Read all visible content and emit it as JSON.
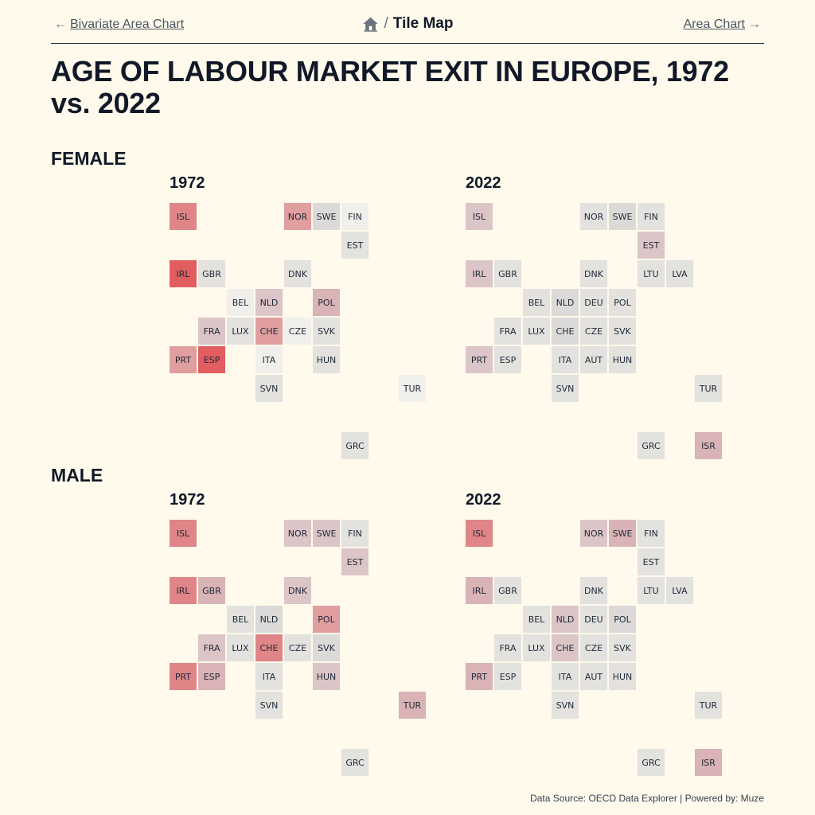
{
  "nav": {
    "prev_label": "Bivariate Area Chart",
    "prev_arrow": "←",
    "next_label": "Area Chart",
    "next_arrow": "→",
    "separator": "/",
    "current": "Tile Map"
  },
  "title": "AGE OF LABOUR MARKET EXIT IN EUROPE, 1972 vs. 2022",
  "footer": "Data Source: OECD Data Explorer | Powered by: Muze",
  "colors": {
    "background": "#fffaeb",
    "tile_levels": [
      "#f0efeb",
      "#e3e2df",
      "#dcdad8",
      "#dcc5c7",
      "#d9b3b6",
      "#e09e9f",
      "#e08587",
      "#e25d60"
    ]
  },
  "chart_data": {
    "type": "tile-map",
    "color_scale": "intensity level 0 (grey) to 7 (red)",
    "positions": {
      "ISL": [
        0,
        0
      ],
      "NOR": [
        4,
        0
      ],
      "SWE": [
        5,
        0
      ],
      "FIN": [
        6,
        0
      ],
      "EST": [
        6,
        1
      ],
      "IRL": [
        0,
        2
      ],
      "GBR": [
        1,
        2
      ],
      "DNK": [
        4,
        2
      ],
      "LTU": [
        6,
        2
      ],
      "LVA": [
        7,
        2
      ],
      "BEL": [
        2,
        3
      ],
      "NLD": [
        3,
        3
      ],
      "DEU": [
        4,
        3
      ],
      "POL": [
        5,
        3
      ],
      "FRA": [
        1,
        4
      ],
      "LUX": [
        2,
        4
      ],
      "CHE": [
        3,
        4
      ],
      "CZE": [
        4,
        4
      ],
      "SVK": [
        5,
        4
      ],
      "PRT": [
        0,
        5
      ],
      "ESP": [
        1,
        5
      ],
      "ITA": [
        3,
        5
      ],
      "AUT": [
        4,
        5
      ],
      "HUN": [
        5,
        5
      ],
      "SVN": [
        3,
        6
      ],
      "TUR": [
        8,
        6
      ],
      "GRC": [
        6,
        8
      ],
      "ISR": [
        8,
        8
      ]
    },
    "sections": [
      {
        "name": "FEMALE",
        "panels": [
          {
            "year": "1972",
            "tiles": [
              {
                "code": "ISL",
                "level": 6
              },
              {
                "code": "NOR",
                "level": 5
              },
              {
                "code": "SWE",
                "level": 2
              },
              {
                "code": "FIN",
                "level": 0
              },
              {
                "code": "EST",
                "level": 1
              },
              {
                "code": "IRL",
                "level": 7
              },
              {
                "code": "GBR",
                "level": 1
              },
              {
                "code": "DNK",
                "level": 1
              },
              {
                "code": "BEL",
                "level": 0
              },
              {
                "code": "NLD",
                "level": 3
              },
              {
                "code": "POL",
                "level": 4
              },
              {
                "code": "FRA",
                "level": 3
              },
              {
                "code": "LUX",
                "level": 1
              },
              {
                "code": "CHE",
                "level": 5
              },
              {
                "code": "CZE",
                "level": 0
              },
              {
                "code": "SVK",
                "level": 1
              },
              {
                "code": "PRT",
                "level": 5
              },
              {
                "code": "ESP",
                "level": 7
              },
              {
                "code": "ITA",
                "level": 0
              },
              {
                "code": "HUN",
                "level": 1
              },
              {
                "code": "SVN",
                "level": 1
              },
              {
                "code": "TUR",
                "level": 0
              },
              {
                "code": "GRC",
                "level": 1
              }
            ]
          },
          {
            "year": "2022",
            "tiles": [
              {
                "code": "ISL",
                "level": 3
              },
              {
                "code": "NOR",
                "level": 1
              },
              {
                "code": "SWE",
                "level": 2
              },
              {
                "code": "FIN",
                "level": 1
              },
              {
                "code": "EST",
                "level": 3
              },
              {
                "code": "IRL",
                "level": 3
              },
              {
                "code": "GBR",
                "level": 1
              },
              {
                "code": "DNK",
                "level": 1
              },
              {
                "code": "LTU",
                "level": 1
              },
              {
                "code": "LVA",
                "level": 1
              },
              {
                "code": "BEL",
                "level": 1
              },
              {
                "code": "NLD",
                "level": 2
              },
              {
                "code": "DEU",
                "level": 1
              },
              {
                "code": "POL",
                "level": 1
              },
              {
                "code": "FRA",
                "level": 1
              },
              {
                "code": "LUX",
                "level": 1
              },
              {
                "code": "CHE",
                "level": 2
              },
              {
                "code": "CZE",
                "level": 1
              },
              {
                "code": "SVK",
                "level": 1
              },
              {
                "code": "PRT",
                "level": 3
              },
              {
                "code": "ESP",
                "level": 1
              },
              {
                "code": "ITA",
                "level": 1
              },
              {
                "code": "AUT",
                "level": 1
              },
              {
                "code": "HUN",
                "level": 1
              },
              {
                "code": "SVN",
                "level": 1
              },
              {
                "code": "TUR",
                "level": 1
              },
              {
                "code": "GRC",
                "level": 1
              },
              {
                "code": "ISR",
                "level": 4
              }
            ]
          }
        ]
      },
      {
        "name": "MALE",
        "panels": [
          {
            "year": "1972",
            "tiles": [
              {
                "code": "ISL",
                "level": 6
              },
              {
                "code": "NOR",
                "level": 3
              },
              {
                "code": "SWE",
                "level": 3
              },
              {
                "code": "FIN",
                "level": 1
              },
              {
                "code": "EST",
                "level": 3
              },
              {
                "code": "IRL",
                "level": 6
              },
              {
                "code": "GBR",
                "level": 4
              },
              {
                "code": "DNK",
                "level": 3
              },
              {
                "code": "BEL",
                "level": 1
              },
              {
                "code": "NLD",
                "level": 2
              },
              {
                "code": "POL",
                "level": 5
              },
              {
                "code": "FRA",
                "level": 3
              },
              {
                "code": "LUX",
                "level": 1
              },
              {
                "code": "CHE",
                "level": 6
              },
              {
                "code": "CZE",
                "level": 1
              },
              {
                "code": "SVK",
                "level": 2
              },
              {
                "code": "PRT",
                "level": 6
              },
              {
                "code": "ESP",
                "level": 4
              },
              {
                "code": "ITA",
                "level": 1
              },
              {
                "code": "HUN",
                "level": 3
              },
              {
                "code": "SVN",
                "level": 1
              },
              {
                "code": "TUR",
                "level": 4
              },
              {
                "code": "GRC",
                "level": 1
              }
            ]
          },
          {
            "year": "2022",
            "tiles": [
              {
                "code": "ISL",
                "level": 6
              },
              {
                "code": "NOR",
                "level": 3
              },
              {
                "code": "SWE",
                "level": 4
              },
              {
                "code": "FIN",
                "level": 1
              },
              {
                "code": "EST",
                "level": 1
              },
              {
                "code": "IRL",
                "level": 4
              },
              {
                "code": "GBR",
                "level": 1
              },
              {
                "code": "DNK",
                "level": 1
              },
              {
                "code": "LTU",
                "level": 1
              },
              {
                "code": "LVA",
                "level": 1
              },
              {
                "code": "BEL",
                "level": 1
              },
              {
                "code": "NLD",
                "level": 3
              },
              {
                "code": "DEU",
                "level": 1
              },
              {
                "code": "POL",
                "level": 2
              },
              {
                "code": "FRA",
                "level": 1
              },
              {
                "code": "LUX",
                "level": 1
              },
              {
                "code": "CHE",
                "level": 3
              },
              {
                "code": "CZE",
                "level": 1
              },
              {
                "code": "SVK",
                "level": 1
              },
              {
                "code": "PRT",
                "level": 4
              },
              {
                "code": "ESP",
                "level": 1
              },
              {
                "code": "ITA",
                "level": 1
              },
              {
                "code": "AUT",
                "level": 1
              },
              {
                "code": "HUN",
                "level": 1
              },
              {
                "code": "SVN",
                "level": 1
              },
              {
                "code": "TUR",
                "level": 1
              },
              {
                "code": "GRC",
                "level": 1
              },
              {
                "code": "ISR",
                "level": 4
              }
            ]
          }
        ]
      }
    ]
  }
}
